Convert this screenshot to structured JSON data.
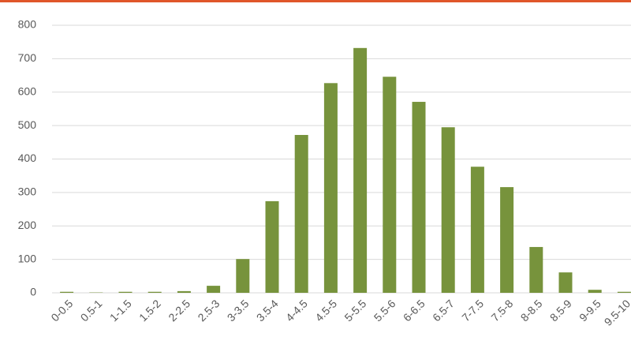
{
  "chart_data": {
    "type": "bar",
    "categories": [
      "0-0.5",
      "0.5-1",
      "1-1.5",
      "1.5-2",
      "2-2.5",
      "2.5-3",
      "3-3.5",
      "3.5-4",
      "4-4.5",
      "4.5-5",
      "5-5.5",
      "5.5-6",
      "6-6.5",
      "6.5-7",
      "7-7.5",
      "7.5-8",
      "8-8.5",
      "8.5-9",
      "9-9.5",
      "9.5-10"
    ],
    "values": [
      3,
      1,
      3,
      3,
      5,
      21,
      101,
      274,
      472,
      627,
      732,
      646,
      571,
      495,
      377,
      316,
      137,
      61,
      9,
      3
    ],
    "color": "#77933c",
    "ylim": [
      0,
      800
    ],
    "yticks": [
      0,
      100,
      200,
      300,
      400,
      500,
      600,
      700,
      800
    ],
    "grid": true
  }
}
